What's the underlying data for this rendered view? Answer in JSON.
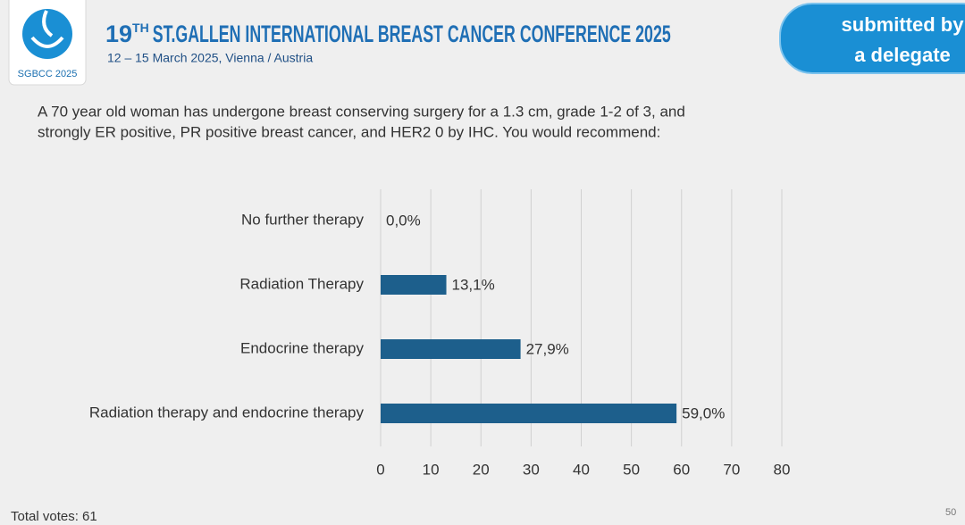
{
  "header": {
    "logo_text": "SGBCC 2025",
    "title_number": "19",
    "title_suffix": "TH",
    "title_rest": "ST.GALLEN INTERNATIONAL BREAST CANCER CONFERENCE 2025",
    "subtitle": "12 – 15 March 2025, Vienna / Austria",
    "badge_lines": [
      "submitted by",
      "a delegate"
    ]
  },
  "chart_data": {
    "type": "barh",
    "title": [
      "A 70 year old woman has undergone breast conserving surgery for a 1.3 cm, grade 1-2 of 3, and",
      "strongly ER positive, PR positive breast cancer, and HER2 0 by IHC.  You would recommend:"
    ],
    "categories": [
      "No further therapy",
      "Radiation Therapy",
      "Endocrine therapy",
      "Radiation therapy and endocrine therapy"
    ],
    "values": [
      0,
      13.1,
      27.9,
      59.0
    ],
    "value_labels": [
      "0,0%",
      "13,1%",
      "27,9%",
      "59,0%"
    ],
    "color": "#1d5f8c",
    "xlim": [
      0,
      80
    ],
    "xticks": [
      0,
      10,
      20,
      30,
      40,
      50,
      60,
      70,
      80
    ],
    "grid": true
  },
  "footer": {
    "total": "Total votes: 61",
    "page": "50"
  }
}
